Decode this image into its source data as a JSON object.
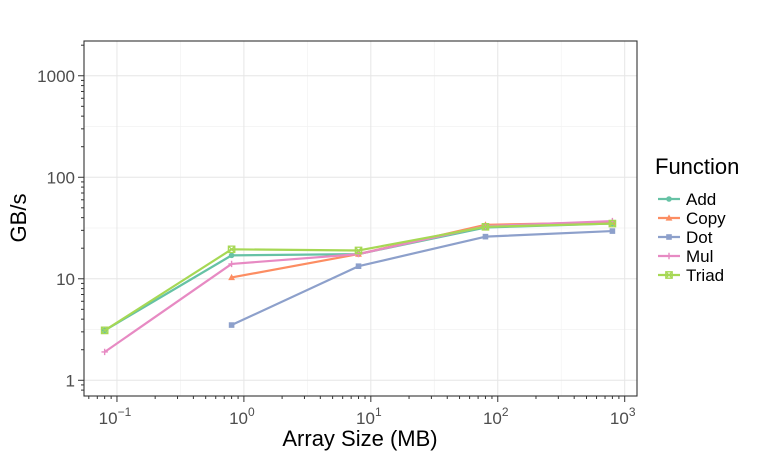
{
  "chart_data": {
    "type": "line",
    "xlabel": "Array Size (MB)",
    "ylabel": "GB/s",
    "x_scale": "log10",
    "y_scale": "log10",
    "xlim": [
      0.055,
      1250
    ],
    "ylim": [
      0.7,
      2200
    ],
    "x_ticks": [
      {
        "value": 0.1,
        "base": "10",
        "exp": "−1"
      },
      {
        "value": 1,
        "base": "10",
        "exp": "0"
      },
      {
        "value": 10,
        "base": "10",
        "exp": "1"
      },
      {
        "value": 100,
        "base": "10",
        "exp": "2"
      },
      {
        "value": 1000,
        "base": "10",
        "exp": "3"
      }
    ],
    "y_ticks": [
      {
        "value": 1,
        "label": "1"
      },
      {
        "value": 10,
        "label": "10"
      },
      {
        "value": 100,
        "label": "100"
      },
      {
        "value": 1000,
        "label": "1000"
      }
    ],
    "grid": true,
    "legend": {
      "title": "Function",
      "position": "right"
    },
    "series": [
      {
        "name": "Add",
        "color": "#66c2a5",
        "marker": "circle",
        "x": [
          0.08,
          0.8,
          8,
          80,
          800
        ],
        "y": [
          3.1,
          17,
          17.5,
          32,
          35
        ]
      },
      {
        "name": "Copy",
        "color": "#fc8d62",
        "marker": "triangle",
        "x": [
          0.8,
          8,
          80,
          800
        ],
        "y": [
          10.3,
          17.5,
          34,
          36
        ]
      },
      {
        "name": "Dot",
        "color": "#8da0cb",
        "marker": "square",
        "x": [
          0.8,
          8,
          80,
          800
        ],
        "y": [
          3.5,
          13.3,
          26,
          29.5
        ]
      },
      {
        "name": "Mul",
        "color": "#e78ac3",
        "marker": "plus",
        "x": [
          0.08,
          0.8,
          8,
          80,
          800
        ],
        "y": [
          1.9,
          14,
          17.5,
          33,
          37
        ]
      },
      {
        "name": "Triad",
        "color": "#a6d854",
        "marker": "squarecross",
        "x": [
          0.08,
          0.8,
          8,
          80,
          800
        ],
        "y": [
          3.1,
          19.5,
          19,
          32.5,
          35
        ]
      }
    ]
  }
}
